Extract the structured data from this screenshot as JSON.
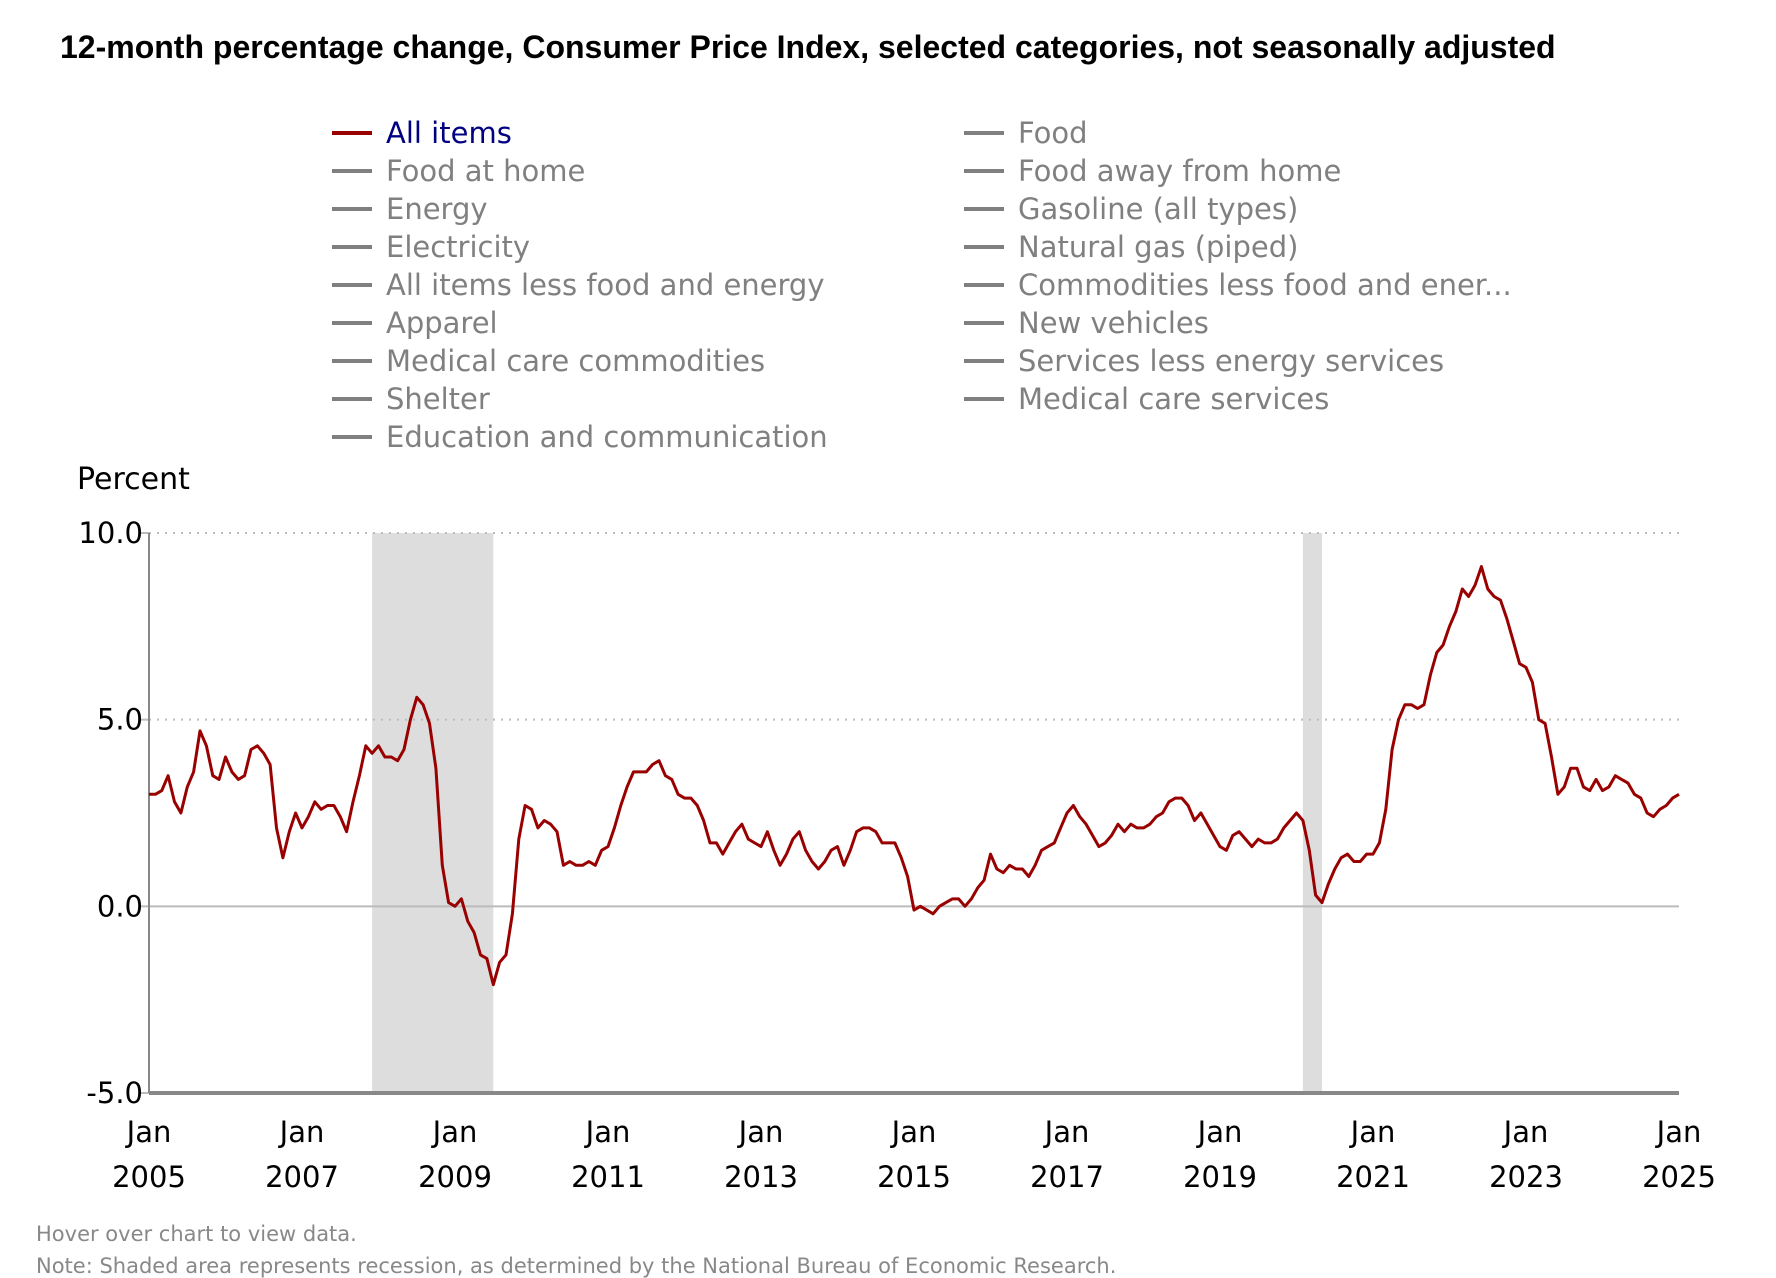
{
  "chart_data": {
    "type": "line",
    "title": "12-month percentage change, Consumer Price Index, selected categories, not seasonally adjusted",
    "ylabel": "Percent",
    "xlabel": "",
    "ylim": [
      -5.0,
      10.0
    ],
    "yticks": [
      "10.0",
      "5.0",
      "0.0",
      "-5.0"
    ],
    "ytick_values": [
      10,
      5,
      0,
      -5
    ],
    "xticks": [
      {
        "line1": "Jan",
        "line2": "2005",
        "year": 2005
      },
      {
        "line1": "Jan",
        "line2": "2007",
        "year": 2007
      },
      {
        "line1": "Jan",
        "line2": "2009",
        "year": 2009
      },
      {
        "line1": "Jan",
        "line2": "2011",
        "year": 2011
      },
      {
        "line1": "Jan",
        "line2": "2013",
        "year": 2013
      },
      {
        "line1": "Jan",
        "line2": "2015",
        "year": 2015
      },
      {
        "line1": "Jan",
        "line2": "2017",
        "year": 2017
      },
      {
        "line1": "Jan",
        "line2": "2019",
        "year": 2019
      },
      {
        "line1": "Jan",
        "line2": "2021",
        "year": 2021
      },
      {
        "line1": "Jan",
        "line2": "2023",
        "year": 2023
      },
      {
        "line1": "Jan",
        "line2": "2025",
        "year": 2025
      }
    ],
    "x_range": [
      "2005-01",
      "2025-01"
    ],
    "grid": "horizontal dotted",
    "legend_placement": "top",
    "recessions": [
      {
        "start": "2007-12",
        "end": "2009-06"
      },
      {
        "start": "2020-02",
        "end": "2020-04"
      }
    ],
    "legend": [
      {
        "label": "All items",
        "active": true
      },
      {
        "label": "Food",
        "active": false
      },
      {
        "label": "Food at home",
        "active": false
      },
      {
        "label": "Food away from home",
        "active": false
      },
      {
        "label": "Energy",
        "active": false
      },
      {
        "label": "Gasoline (all types)",
        "active": false
      },
      {
        "label": "Electricity",
        "active": false
      },
      {
        "label": "Natural gas (piped)",
        "active": false
      },
      {
        "label": "All items less food and energy",
        "active": false
      },
      {
        "label": "Commodities less food and ener...",
        "active": false
      },
      {
        "label": "Apparel",
        "active": false
      },
      {
        "label": "New vehicles",
        "active": false
      },
      {
        "label": "Medical care commodities",
        "active": false
      },
      {
        "label": "Services less energy services",
        "active": false
      },
      {
        "label": "Shelter",
        "active": false
      },
      {
        "label": "Medical care services",
        "active": false
      },
      {
        "label": "Education and communication",
        "active": false
      }
    ],
    "series": [
      {
        "name": "All items",
        "color": "#990000",
        "start": "2005-01",
        "frequency": "monthly",
        "values": [
          3.0,
          3.0,
          3.1,
          3.5,
          2.8,
          2.5,
          3.2,
          3.6,
          4.7,
          4.3,
          3.5,
          3.4,
          4.0,
          3.6,
          3.4,
          3.5,
          4.2,
          4.3,
          4.1,
          3.8,
          2.1,
          1.3,
          2.0,
          2.5,
          2.1,
          2.4,
          2.8,
          2.6,
          2.7,
          2.7,
          2.4,
          2.0,
          2.8,
          3.5,
          4.3,
          4.1,
          4.3,
          4.0,
          4.0,
          3.9,
          4.2,
          5.0,
          5.6,
          5.4,
          4.9,
          3.7,
          1.1,
          0.1,
          0.0,
          0.2,
          -0.4,
          -0.7,
          -1.3,
          -1.4,
          -2.1,
          -1.5,
          -1.3,
          -0.2,
          1.8,
          2.7,
          2.6,
          2.1,
          2.3,
          2.2,
          2.0,
          1.1,
          1.2,
          1.1,
          1.1,
          1.2,
          1.1,
          1.5,
          1.6,
          2.1,
          2.7,
          3.2,
          3.6,
          3.6,
          3.6,
          3.8,
          3.9,
          3.5,
          3.4,
          3.0,
          2.9,
          2.9,
          2.7,
          2.3,
          1.7,
          1.7,
          1.4,
          1.7,
          2.0,
          2.2,
          1.8,
          1.7,
          1.6,
          2.0,
          1.5,
          1.1,
          1.4,
          1.8,
          2.0,
          1.5,
          1.2,
          1.0,
          1.2,
          1.5,
          1.6,
          1.1,
          1.5,
          2.0,
          2.1,
          2.1,
          2.0,
          1.7,
          1.7,
          1.7,
          1.3,
          0.8,
          -0.1,
          0.0,
          -0.1,
          -0.2,
          0.0,
          0.1,
          0.2,
          0.2,
          0.0,
          0.2,
          0.5,
          0.7,
          1.4,
          1.0,
          0.9,
          1.1,
          1.0,
          1.0,
          0.8,
          1.1,
          1.5,
          1.6,
          1.7,
          2.1,
          2.5,
          2.7,
          2.4,
          2.2,
          1.9,
          1.6,
          1.7,
          1.9,
          2.2,
          2.0,
          2.2,
          2.1,
          2.1,
          2.2,
          2.4,
          2.5,
          2.8,
          2.9,
          2.9,
          2.7,
          2.3,
          2.5,
          2.2,
          1.9,
          1.6,
          1.5,
          1.9,
          2.0,
          1.8,
          1.6,
          1.8,
          1.7,
          1.7,
          1.8,
          2.1,
          2.3,
          2.5,
          2.3,
          1.5,
          0.3,
          0.1,
          0.6,
          1.0,
          1.3,
          1.4,
          1.2,
          1.2,
          1.4,
          1.4,
          1.7,
          2.6,
          4.2,
          5.0,
          5.4,
          5.4,
          5.3,
          5.4,
          6.2,
          6.8,
          7.0,
          7.5,
          7.9,
          8.5,
          8.3,
          8.6,
          9.1,
          8.5,
          8.3,
          8.2,
          7.7,
          7.1,
          6.5,
          6.4,
          6.0,
          5.0,
          4.9,
          4.0,
          3.0,
          3.2,
          3.7,
          3.7,
          3.2,
          3.1,
          3.4,
          3.1,
          3.2,
          3.5,
          3.4,
          3.3,
          3.0,
          2.9,
          2.5,
          2.4,
          2.6,
          2.7,
          2.9,
          3.0
        ]
      }
    ]
  },
  "notes": {
    "hover": "Hover over chart to view data.",
    "recession": "Note: Shaded area represents recession, as determined by the National Bureau of Economic Research."
  }
}
